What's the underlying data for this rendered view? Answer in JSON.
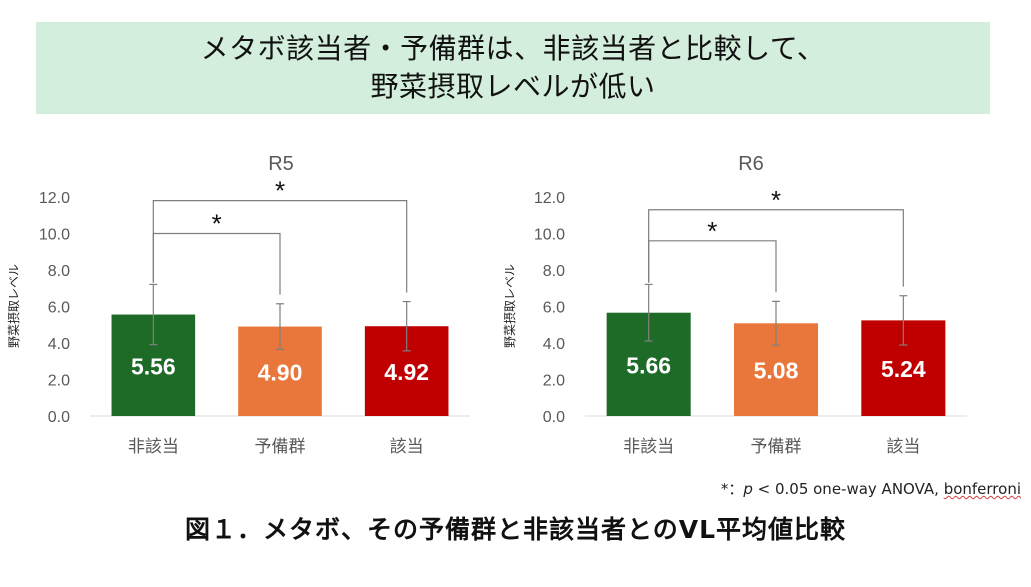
{
  "banner": {
    "line1": "メタボ該当者・予備群は、非該当者と比較して、",
    "line2": "野菜摂取レベルが低い"
  },
  "footnote": {
    "star": "*：",
    "p": "p",
    "rest": " < 0.05  one-way ANOVA, ",
    "method": "bonferroni"
  },
  "caption": "図１．メタボ、その予備群と非該当者とのVL平均値比較",
  "colors": {
    "green": "#1e6b28",
    "orange": "#e9763a",
    "red": "#c00000",
    "axis_text": "#595959"
  },
  "chart_data": [
    {
      "type": "bar",
      "title": "R5",
      "ylabel": "野菜摂取レベル",
      "ylim": [
        0,
        12
      ],
      "yticks": [
        "0.0",
        "2.0",
        "4.0",
        "6.0",
        "8.0",
        "10.0",
        "12.0"
      ],
      "categories": [
        "非該当",
        "予備群",
        "該当"
      ],
      "values": [
        5.56,
        4.9,
        4.92
      ],
      "labels": [
        "5.56",
        "4.90",
        "4.92"
      ],
      "error": [
        1.65,
        1.25,
        1.35
      ],
      "bar_colors": [
        "#1e6b28",
        "#e9763a",
        "#c00000"
      ],
      "significance": [
        {
          "from": 0,
          "to": 1,
          "y": 10.0,
          "mark": "*"
        },
        {
          "from": 0,
          "to": 2,
          "y": 11.8,
          "mark": "*"
        }
      ]
    },
    {
      "type": "bar",
      "title": "R6",
      "ylabel": "野菜摂取レベル",
      "ylim": [
        0,
        12
      ],
      "yticks": [
        "0.0",
        "2.0",
        "4.0",
        "6.0",
        "8.0",
        "10.0",
        "12.0"
      ],
      "categories": [
        "非該当",
        "予備群",
        "該当"
      ],
      "values": [
        5.66,
        5.08,
        5.24
      ],
      "labels": [
        "5.66",
        "5.08",
        "5.24"
      ],
      "error": [
        1.55,
        1.2,
        1.35
      ],
      "bar_colors": [
        "#1e6b28",
        "#e9763a",
        "#c00000"
      ],
      "significance": [
        {
          "from": 0,
          "to": 1,
          "y": 9.6,
          "mark": "*"
        },
        {
          "from": 0,
          "to": 2,
          "y": 11.3,
          "mark": "*"
        }
      ]
    }
  ]
}
